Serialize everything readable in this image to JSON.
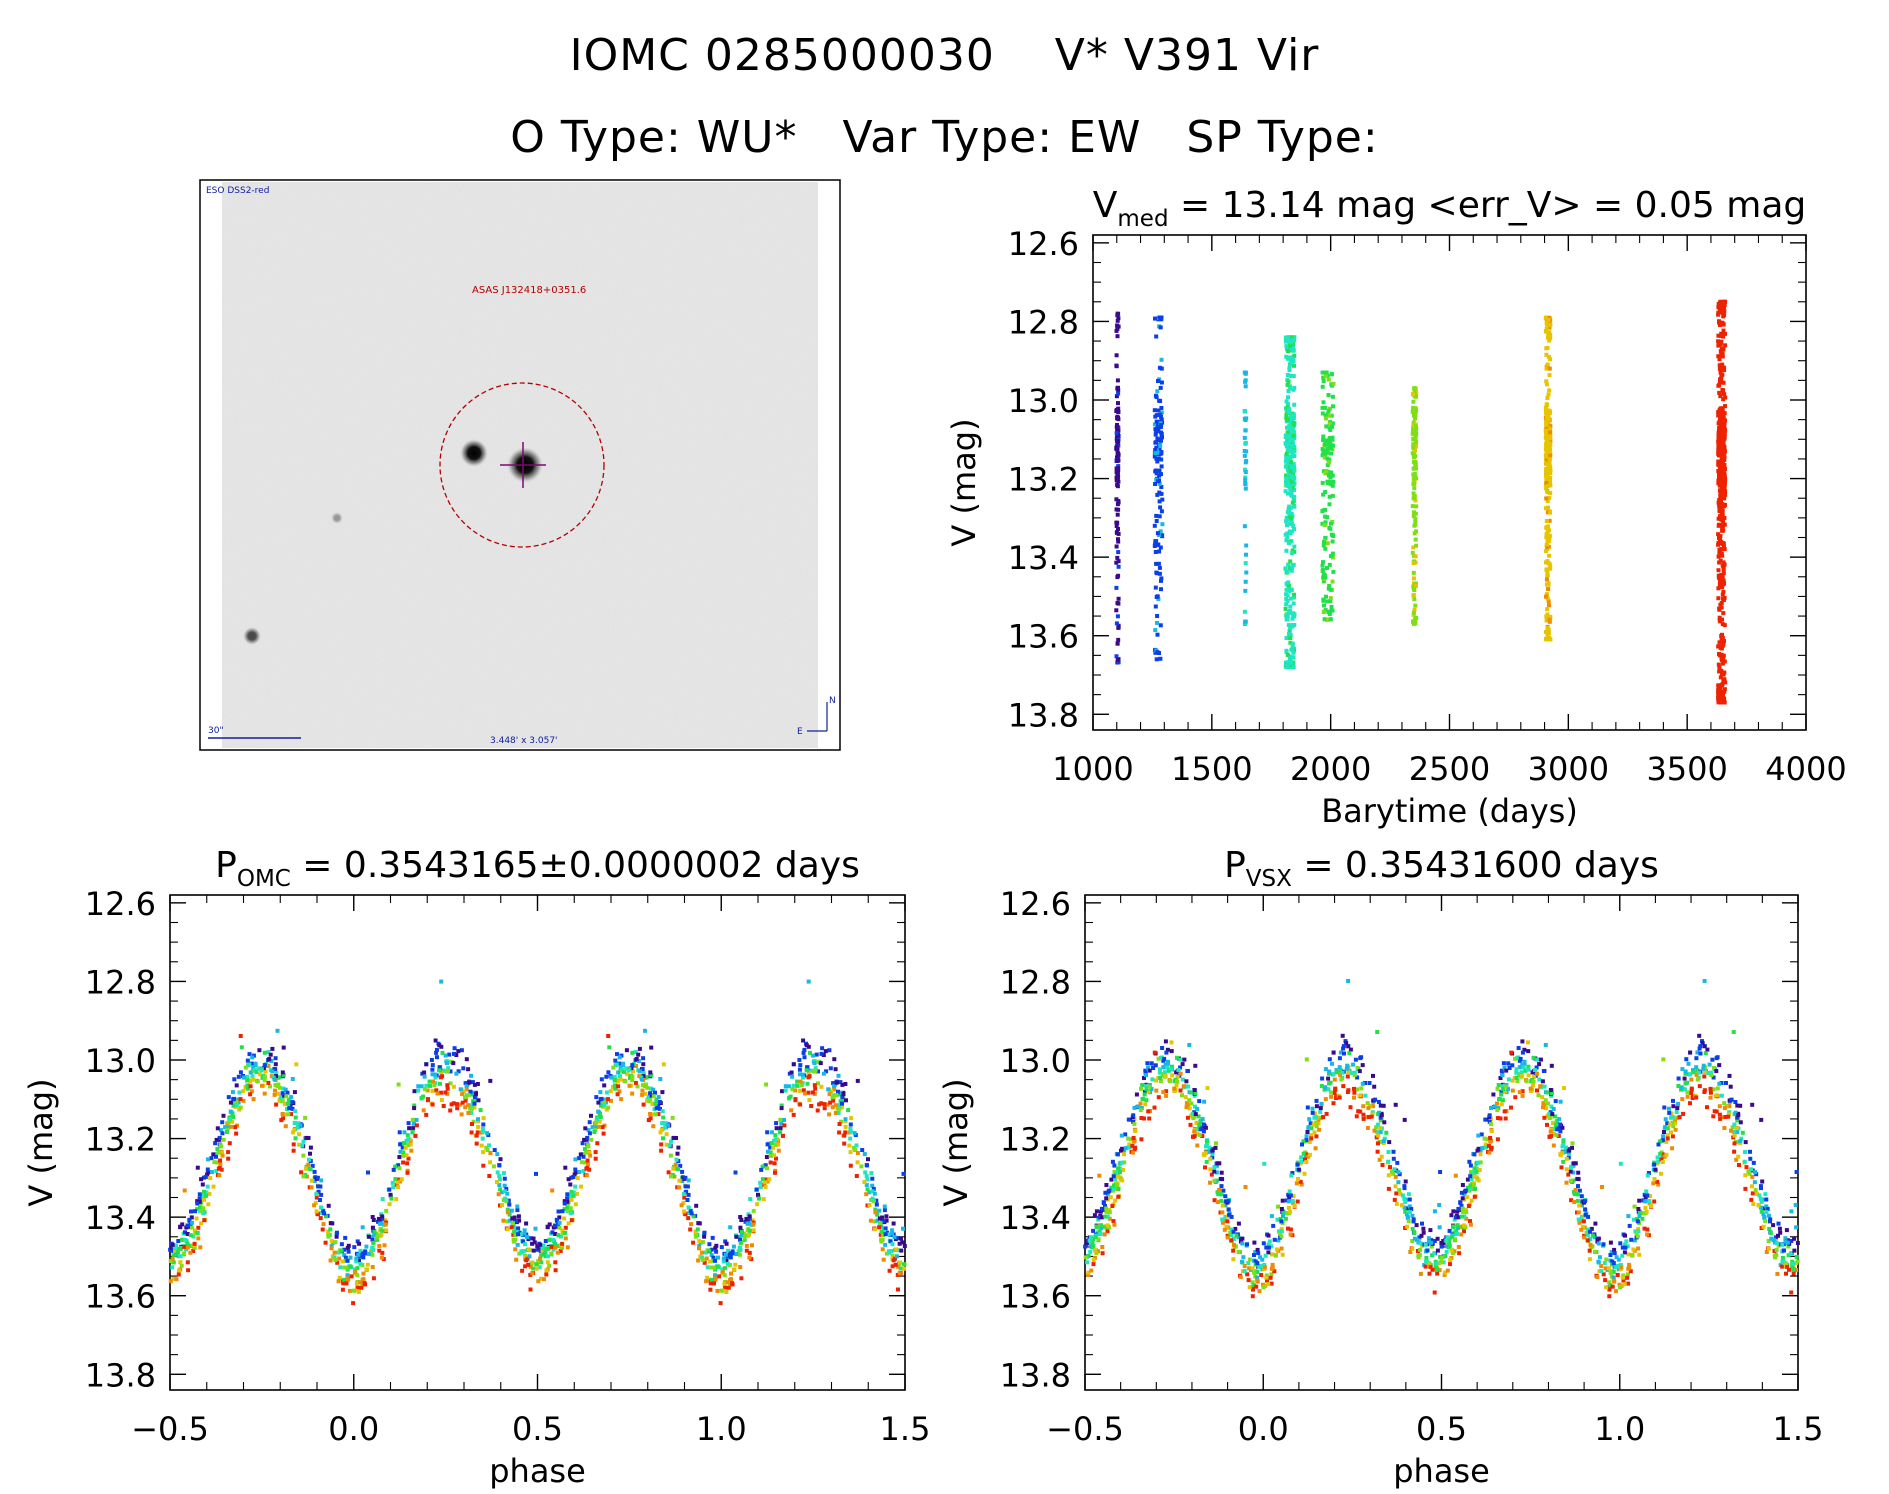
{
  "header": {
    "line1": {
      "id": "IOMC 0285000030",
      "name": "V* V391 Vir"
    },
    "line2": {
      "otype": "O Type: WU*",
      "vartype": "Var Type: EW",
      "sptype": "SP Type:"
    }
  },
  "finder": {
    "survey": "ESO DSS2-red",
    "target_label": "ASAS J132418+0351.6",
    "scale_label": "30\"",
    "fov_label": "3.448' x 3.057'",
    "north": "N",
    "east": "E"
  },
  "colors": {
    "palette": [
      "#3b0a8c",
      "#0b3fe8",
      "#18b7e6",
      "#1fe6c0",
      "#22e04a",
      "#7ee014",
      "#e6c400",
      "#f08a00",
      "#ee2200"
    ]
  },
  "chart_data": [
    {
      "id": "lightcurve",
      "type": "scatter",
      "title": {
        "pre": "V",
        "sub": "med",
        "post": " = 13.14 mag <err_V> = 0.05 mag"
      },
      "xlabel": "Barytime (days)",
      "ylabel": "V (mag)",
      "xlim": [
        1000,
        4000
      ],
      "ylim": [
        13.84,
        12.58
      ],
      "xticks": [
        1000,
        1500,
        2000,
        2500,
        3000,
        3500,
        4000
      ],
      "yticks": [
        12.6,
        12.8,
        13.0,
        13.2,
        13.4,
        13.6,
        13.8
      ],
      "tick_decimals": {
        "x": 0,
        "y": 1
      },
      "groups": [
        {
          "t0": 1098,
          "t1": 1108,
          "n": 140,
          "vmin": 12.78,
          "vmax": 13.67,
          "color": 0
        },
        {
          "t0": 1260,
          "t1": 1292,
          "n": 150,
          "vmin": 12.79,
          "vmax": 13.66,
          "color": 1
        },
        {
          "t0": 1638,
          "t1": 1645,
          "n": 40,
          "vmin": 12.93,
          "vmax": 13.57,
          "color": 2
        },
        {
          "t0": 1810,
          "t1": 1848,
          "n": 420,
          "vmin": 12.84,
          "vmax": 13.68,
          "color": 3
        },
        {
          "t0": 1965,
          "t1": 2012,
          "n": 170,
          "vmin": 12.93,
          "vmax": 13.56,
          "color": 4
        },
        {
          "t0": 2345,
          "t1": 2360,
          "n": 150,
          "vmin": 12.97,
          "vmax": 13.57,
          "color": 5
        },
        {
          "t0": 2905,
          "t1": 2925,
          "n": 300,
          "vmin": 12.79,
          "vmax": 13.61,
          "color": 6
        },
        {
          "t0": 3630,
          "t1": 3660,
          "n": 560,
          "vmin": 12.75,
          "vmax": 13.77,
          "color": 8
        }
      ]
    },
    {
      "id": "phase-omc",
      "type": "scatter",
      "title": {
        "pre": "P",
        "sub": "OMC",
        "post": " = 0.3543165±0.0000002 days"
      },
      "xlabel": "phase",
      "ylabel": "V (mag)",
      "xlim": [
        -0.5,
        1.5
      ],
      "ylim": [
        13.84,
        12.58
      ],
      "xticks": [
        -0.5,
        0.0,
        0.5,
        1.0,
        1.5
      ],
      "yticks": [
        12.6,
        12.8,
        13.0,
        13.2,
        13.4,
        13.6,
        13.8
      ],
      "tick_decimals": {
        "x": 1,
        "y": 1
      },
      "model": {
        "maxima_mag": 13.04,
        "primary_min_mag": 13.55,
        "secondary_min_mag": 13.52,
        "scatter_mag": 0.05,
        "points_per_cycle": 900,
        "shift": 0.0
      }
    },
    {
      "id": "phase-vsx",
      "type": "scatter",
      "title": {
        "pre": "P",
        "sub": "VSX",
        "post": " = 0.35431600 days"
      },
      "xlabel": "phase",
      "ylabel": "V (mag)",
      "xlim": [
        -0.5,
        1.5
      ],
      "ylim": [
        13.84,
        12.58
      ],
      "xticks": [
        -0.5,
        0.0,
        0.5,
        1.0,
        1.5
      ],
      "yticks": [
        12.6,
        12.8,
        13.0,
        13.2,
        13.4,
        13.6,
        13.8
      ],
      "tick_decimals": {
        "x": 1,
        "y": 1
      },
      "model": {
        "maxima_mag": 13.04,
        "primary_min_mag": 13.55,
        "secondary_min_mag": 13.52,
        "scatter_mag": 0.05,
        "points_per_cycle": 900,
        "shift": 0.02
      }
    }
  ]
}
